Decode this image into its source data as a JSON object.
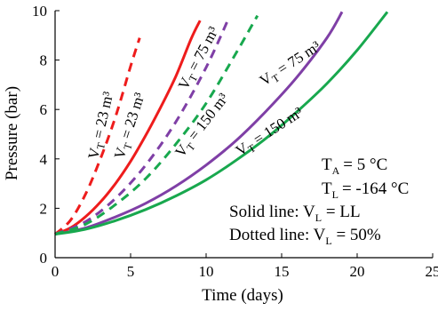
{
  "chart_data": {
    "type": "line",
    "xlabel": "Time (days)",
    "ylabel": "Pressure (bar)",
    "xlim": [
      0,
      25
    ],
    "ylim": [
      0,
      10
    ],
    "xticks": [
      0,
      5,
      10,
      15,
      20,
      25
    ],
    "yticks": [
      0,
      2,
      4,
      6,
      8,
      10
    ],
    "grid": false,
    "series": [
      {
        "label": "V_T = 23 m³",
        "line": "solid",
        "color": "#ee1c1c",
        "x": [
          0,
          1,
          2,
          3,
          4,
          5,
          6,
          7,
          8,
          9,
          9.6
        ],
        "y": [
          0.95,
          1.2,
          1.65,
          2.25,
          3.0,
          3.9,
          4.95,
          6.1,
          7.35,
          8.85,
          9.6
        ]
      },
      {
        "label": "V_T = 23 m³",
        "line": "dashed",
        "color": "#ee1c1c",
        "x": [
          0,
          1,
          2,
          3,
          4,
          5,
          5.6
        ],
        "y": [
          0.95,
          1.5,
          2.55,
          4.0,
          5.7,
          7.75,
          8.9
        ]
      },
      {
        "label": "V_T = 75 m³",
        "line": "solid",
        "color": "#7f3fa6",
        "x": [
          0,
          2,
          4,
          6,
          8,
          10,
          12,
          14,
          16,
          18,
          19
        ],
        "y": [
          0.95,
          1.2,
          1.65,
          2.2,
          2.9,
          3.75,
          4.75,
          5.95,
          7.3,
          8.9,
          9.95
        ]
      },
      {
        "label": "V_T = 75 m³",
        "line": "dashed",
        "color": "#7f3fa6",
        "x": [
          0,
          2,
          4,
          6,
          8,
          10,
          11.5
        ],
        "y": [
          0.95,
          1.45,
          2.4,
          3.75,
          5.5,
          7.7,
          9.7
        ]
      },
      {
        "label": "V_T = 150 m³",
        "line": "solid",
        "color": "#18a84e",
        "x": [
          0,
          2,
          4,
          6,
          8,
          10,
          12,
          14,
          16,
          18,
          20,
          22
        ],
        "y": [
          0.95,
          1.15,
          1.5,
          1.95,
          2.5,
          3.15,
          3.95,
          4.85,
          5.9,
          7.05,
          8.4,
          9.95
        ]
      },
      {
        "label": "V_T = 150 m³",
        "line": "dashed",
        "color": "#18a84e",
        "x": [
          0,
          2,
          4,
          6,
          8,
          10,
          12,
          13.4
        ],
        "y": [
          0.95,
          1.35,
          2.15,
          3.2,
          4.6,
          6.25,
          8.3,
          9.8
        ]
      }
    ],
    "curve_labels": {
      "vt_prefix": "V",
      "vt_sub": "T",
      "vt_23": " = 23 m³",
      "vt_75": " = 75 m³",
      "vt_150": " = 150 m³"
    },
    "annotations": {
      "ta_main": "T",
      "ta_sub": "A",
      "ta_value": "=  5 °C",
      "tl_main": "T",
      "tl_sub": "L",
      "tl_value": "=  -164 °C",
      "solid_prefix": "Solid line:   V",
      "solid_sub": "L",
      "solid_value": " =  LL",
      "dotted_prefix": "Dotted line:  V",
      "dotted_sub": "L",
      "dotted_value": " =  50%"
    }
  }
}
